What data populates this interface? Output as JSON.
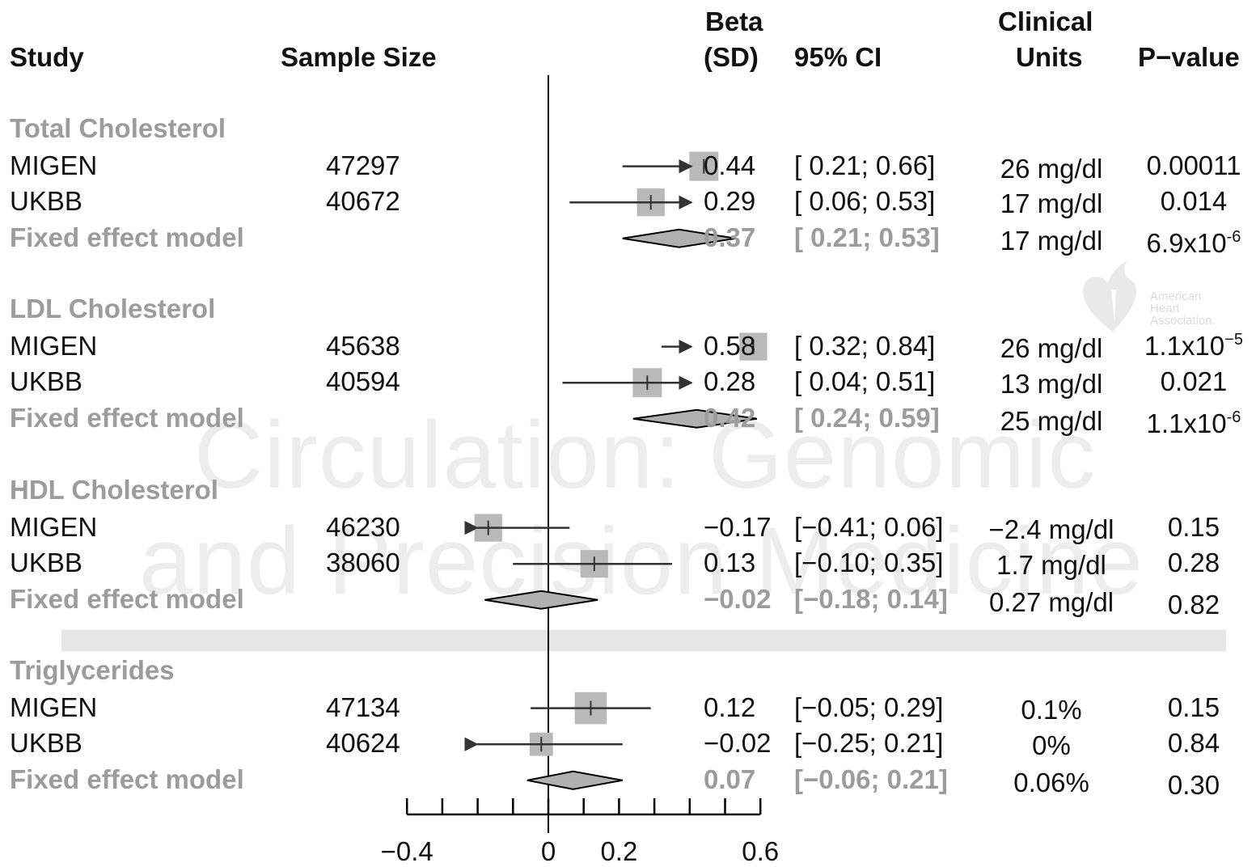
{
  "watermark": {
    "line1": "Circulation: Genomic",
    "line2": "and Precision Medicine"
  },
  "logo": {
    "line1": "American",
    "line2": "Heart",
    "line3": "Association."
  },
  "headers": {
    "study": "Study",
    "sample_size": "Sample Size",
    "beta_1": "Beta",
    "beta_2": "(SD)",
    "ci": "95% CI",
    "clinical_1": "Clinical",
    "clinical_2": "Units",
    "pvalue": "P−value"
  },
  "chart_data": {
    "type": "forest",
    "x_ticks": [
      -0.4,
      -0.3,
      -0.2,
      -0.1,
      0,
      0.1,
      0.2,
      0.3,
      0.4,
      0.5,
      0.6
    ],
    "x_tick_labels": [
      {
        "value": -0.4,
        "label": "−0.4"
      },
      {
        "value": 0,
        "label": "0"
      },
      {
        "value": 0.2,
        "label": "0.2"
      },
      {
        "value": 0.6,
        "label": "0.6"
      }
    ],
    "xlim": [
      -0.4,
      0.6
    ],
    "reference_line": 0,
    "groups": [
      {
        "name": "Total Cholesterol",
        "rows": [
          {
            "study": "MIGEN",
            "n": "47297",
            "beta": 0.44,
            "ci_low": 0.21,
            "ci_high": 0.66,
            "beta_text": "0.44",
            "ci_text": "[ 0.21; 0.66]",
            "clinical": "26 mg/dl",
            "p": "0.00011",
            "weight": 1.0
          },
          {
            "study": "UKBB",
            "n": "40672",
            "beta": 0.29,
            "ci_low": 0.06,
            "ci_high": 0.53,
            "beta_text": "0.29",
            "ci_text": "[ 0.06; 0.53]",
            "clinical": "17 mg/dl",
            "p": "0.014",
            "weight": 0.95
          }
        ],
        "fixed": {
          "label": "Fixed effect model",
          "beta": 0.37,
          "ci_low": 0.21,
          "ci_high": 0.53,
          "beta_text": "0.37",
          "ci_text": "[ 0.21; 0.53]",
          "clinical": "17 mg/dl",
          "p_base": "6.9x10",
          "p_exp": "-6"
        }
      },
      {
        "name": "LDL Cholesterol",
        "rows": [
          {
            "study": "MIGEN",
            "n": "45638",
            "beta": 0.58,
            "ci_low": 0.32,
            "ci_high": 0.84,
            "beta_text": "0.58",
            "ci_text": "[ 0.32; 0.84]",
            "clinical": "26 mg/dl",
            "p_base": "1.1x10",
            "p_exp": "−5",
            "weight": 0.95
          },
          {
            "study": "UKBB",
            "n": "40594",
            "beta": 0.28,
            "ci_low": 0.04,
            "ci_high": 0.51,
            "beta_text": "0.28",
            "ci_text": "[ 0.04; 0.51]",
            "clinical": "13 mg/dl",
            "p": "0.021",
            "weight": 1.0
          }
        ],
        "fixed": {
          "label": "Fixed effect model",
          "beta": 0.42,
          "ci_low": 0.24,
          "ci_high": 0.59,
          "beta_text": "0.42",
          "ci_text": "[ 0.24; 0.59]",
          "clinical": "25 mg/dl",
          "p_base": "1.1x10",
          "p_exp": "-6"
        }
      },
      {
        "name": "HDL Cholesterol",
        "rows": [
          {
            "study": "MIGEN",
            "n": "46230",
            "beta": -0.17,
            "ci_low": -0.41,
            "ci_high": 0.06,
            "beta_text": "−0.17",
            "ci_text": "[−0.41; 0.06]",
            "clinical": "−2.4 mg/dl",
            "p": "0.15",
            "weight": 0.95
          },
          {
            "study": "UKBB",
            "n": "38060",
            "beta": 0.13,
            "ci_low": -0.1,
            "ci_high": 0.35,
            "beta_text": "0.13",
            "ci_text": "[−0.10; 0.35]",
            "clinical": "1.7 mg/dl",
            "p": "0.28",
            "weight": 0.95
          }
        ],
        "fixed": {
          "label": "Fixed effect model",
          "beta": -0.02,
          "ci_low": -0.18,
          "ci_high": 0.14,
          "beta_text": "−0.02",
          "ci_text": "[−0.18; 0.14]",
          "clinical": "0.27 mg/dl",
          "p": "0.82"
        }
      },
      {
        "name": "Triglycerides",
        "rows": [
          {
            "study": "MIGEN",
            "n": "47134",
            "beta": 0.12,
            "ci_low": -0.05,
            "ci_high": 0.29,
            "beta_text": "0.12",
            "ci_text": "[−0.05; 0.29]",
            "clinical": "0.1%",
            "p": "0.15",
            "weight": 1.1
          },
          {
            "study": "UKBB",
            "n": "40624",
            "beta": -0.02,
            "ci_low": -0.25,
            "ci_high": 0.21,
            "beta_text": "−0.02",
            "ci_text": "[−0.25; 0.21]",
            "clinical": "0%",
            "p": "0.84",
            "weight": 0.8
          }
        ],
        "fixed": {
          "label": "Fixed effect model",
          "beta": 0.07,
          "ci_low": -0.06,
          "ci_high": 0.21,
          "beta_text": "0.07",
          "ci_text": "[−0.06; 0.21]",
          "clinical": "0.06%",
          "p": "0.30"
        }
      }
    ]
  }
}
